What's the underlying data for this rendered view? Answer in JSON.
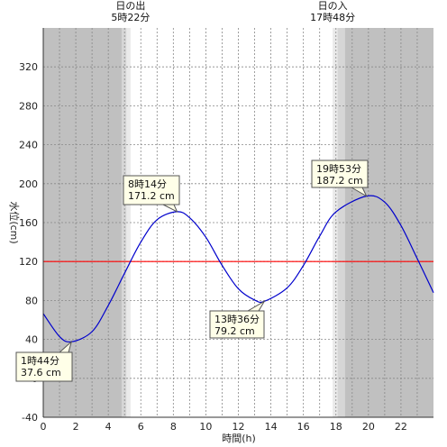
{
  "chart_data": {
    "type": "line",
    "xlabel": "時間(h)",
    "ylabel": "水位(cm)",
    "xlim": [
      0,
      24
    ],
    "ylim": [
      -40,
      360
    ],
    "x_ticks": [
      0,
      2,
      4,
      6,
      8,
      10,
      12,
      14,
      16,
      18,
      20,
      22
    ],
    "y_ticks": [
      -40,
      0,
      40,
      80,
      120,
      160,
      200,
      240,
      280,
      320
    ],
    "grid": true,
    "reference_line": {
      "y": 120,
      "color": "#ff0000"
    },
    "sunrise": {
      "label": "日の出",
      "time": "5時22分",
      "hour": 5.37
    },
    "sunset": {
      "label": "日の入",
      "time": "17時48分",
      "hour": 17.8
    },
    "series": [
      {
        "color": "#0000cc",
        "x": [
          0,
          1,
          1.733,
          3,
          4,
          5,
          6,
          7,
          8.233,
          9,
          10,
          11,
          12,
          13,
          13.6,
          15,
          16,
          17,
          18,
          19.883,
          21,
          22,
          23,
          24
        ],
        "y": [
          66.5,
          43,
          37.6,
          48,
          75,
          108,
          140,
          163,
          171.2,
          165,
          145,
          116,
          92,
          80.5,
          79.2,
          93,
          116,
          146,
          171,
          187.2,
          181,
          157,
          123,
          88
        ]
      }
    ],
    "annotations": [
      {
        "time": "1時44分",
        "value": "37.6 cm",
        "x": 1.733,
        "y": 37.6
      },
      {
        "time": "8時14分",
        "value": "171.2 cm",
        "x": 8.233,
        "y": 171.2
      },
      {
        "time": "13時36分",
        "value": "79.2 cm",
        "x": 13.6,
        "y": 79.2
      },
      {
        "time": "19時53分",
        "value": "187.2 cm",
        "x": 19.883,
        "y": 187.2
      }
    ]
  },
  "colors": {
    "night": "#c0c0c0",
    "twilight_outer": "#d6d6d6",
    "twilight_inner": "#eaeaea",
    "grid": "#888888",
    "line": "#0000cc",
    "reference": "#ff0000"
  }
}
